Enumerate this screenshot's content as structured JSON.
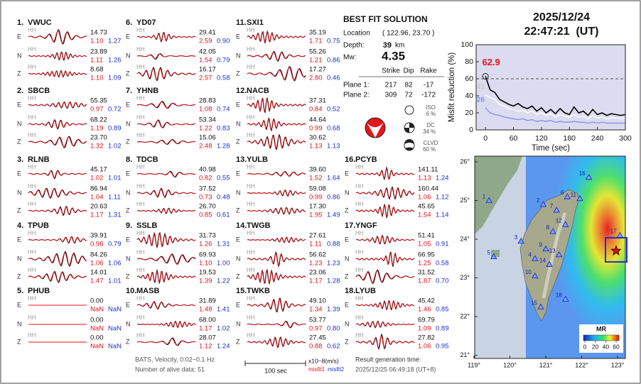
{
  "header": {
    "date": "2025/12/24",
    "time": "22:47:21  (UT)"
  },
  "stations": [
    {
      "no": "1.",
      "name": "VWUC",
      "traces": [
        {
          "comp": "E",
          "channel": "HH",
          "amp": "14.73",
          "misfit1": "1.10",
          "misfit2": "1.27"
        },
        {
          "comp": "N",
          "channel": "HH",
          "amp": "23.89",
          "misfit1": "1.11",
          "misfit2": "1.26"
        },
        {
          "comp": "Z",
          "channel": "HH",
          "amp": "8.68",
          "misfit1": "1.10",
          "misfit2": "1.09"
        }
      ]
    },
    {
      "no": "2.",
      "name": "SBCB",
      "traces": [
        {
          "comp": "E",
          "channel": "HH",
          "amp": "55.35",
          "misfit1": "0.97",
          "misfit2": "0.72"
        },
        {
          "comp": "N",
          "channel": "HH",
          "amp": "68.22",
          "misfit1": "1.19",
          "misfit2": "0.89"
        },
        {
          "comp": "Z",
          "channel": "HH",
          "amp": "23.70",
          "misfit1": "1.32",
          "misfit2": "1.02"
        }
      ]
    },
    {
      "no": "3.",
      "name": "RLNB",
      "traces": [
        {
          "comp": "E",
          "channel": "HH",
          "amp": "45.17",
          "misfit1": "1.02",
          "misfit2": "1.01"
        },
        {
          "comp": "N",
          "channel": "HH",
          "amp": "86.94",
          "misfit1": "1.04",
          "misfit2": "1.11"
        },
        {
          "comp": "Z",
          "channel": "HH",
          "amp": "20.63",
          "misfit1": "1.17",
          "misfit2": "1.31"
        }
      ]
    },
    {
      "no": "4.",
      "name": "TPUB",
      "traces": [
        {
          "comp": "E",
          "channel": "HH",
          "amp": "39.91",
          "misfit1": "0.96",
          "misfit2": "0.79"
        },
        {
          "comp": "N",
          "channel": "HH",
          "amp": "84.26",
          "misfit1": "1.06",
          "misfit2": "1.06"
        },
        {
          "comp": "Z",
          "channel": "HH",
          "amp": "14.01",
          "misfit1": "1.47",
          "misfit2": "1.01"
        }
      ]
    },
    {
      "no": "5.",
      "name": "PHUB",
      "traces": [
        {
          "comp": "E",
          "channel": "HH",
          "amp": "0.00",
          "misfit1": "NaN",
          "misfit2": "NaN"
        },
        {
          "comp": "N",
          "channel": "HH",
          "amp": "0.00",
          "misfit1": "NaN",
          "misfit2": "NaN"
        },
        {
          "comp": "Z",
          "channel": "HH",
          "amp": "0.00",
          "misfit1": "NaN",
          "misfit2": "NaN"
        }
      ]
    },
    {
      "no": "6.",
      "name": "YD07",
      "traces": [
        {
          "comp": "E",
          "channel": "HH",
          "amp": "29.41",
          "misfit1": "2.59",
          "misfit2": "0.90"
        },
        {
          "comp": "N",
          "channel": "HH",
          "amp": "42.05",
          "misfit1": "1.54",
          "misfit2": "0.79"
        },
        {
          "comp": "Z",
          "channel": "HH",
          "amp": "16.17",
          "misfit1": "2.57",
          "misfit2": "0.58"
        }
      ]
    },
    {
      "no": "7.",
      "name": "YHNB",
      "traces": [
        {
          "comp": "E",
          "channel": "HH",
          "amp": "28.83",
          "misfit1": "1.08",
          "misfit2": "0.74"
        },
        {
          "comp": "N",
          "channel": "HH",
          "amp": "53.34",
          "misfit1": "1.22",
          "misfit2": "0.83"
        },
        {
          "comp": "Z",
          "channel": "HH",
          "amp": "15.06",
          "misfit1": "2.48",
          "misfit2": "1.28"
        }
      ]
    },
    {
      "no": "8.",
      "name": "TDCB",
      "traces": [
        {
          "comp": "E",
          "channel": "HH",
          "amp": "40.98",
          "misfit1": "0.82",
          "misfit2": "0.55"
        },
        {
          "comp": "N",
          "channel": "HH",
          "amp": "37.52",
          "misfit1": "0.73",
          "misfit2": "0.48"
        },
        {
          "comp": "Z",
          "channel": "HH",
          "amp": "26.70",
          "misfit1": "0.85",
          "misfit2": "0.61"
        }
      ]
    },
    {
      "no": "9.",
      "name": "SSLB",
      "traces": [
        {
          "comp": "E",
          "channel": "HH",
          "amp": "31.73",
          "misfit1": "1.26",
          "misfit2": "1.31"
        },
        {
          "comp": "N",
          "channel": "HH",
          "amp": "69.93",
          "misfit1": "1.10",
          "misfit2": "1.00"
        },
        {
          "comp": "Z",
          "channel": "HH",
          "amp": "19.53",
          "misfit1": "1.39",
          "misfit2": "1.22"
        }
      ]
    },
    {
      "no": "10.",
      "name": "MASB",
      "traces": [
        {
          "comp": "E",
          "channel": "HH",
          "amp": "31.89",
          "misfit1": "1.48",
          "misfit2": "1.41"
        },
        {
          "comp": "N",
          "channel": "HH",
          "amp": "68.00",
          "misfit1": "1.17",
          "misfit2": "1.02"
        },
        {
          "comp": "Z",
          "channel": "HH",
          "amp": "28.07",
          "misfit1": "1.12",
          "misfit2": "1.24"
        }
      ]
    },
    {
      "no": "11.",
      "name": "SXI1",
      "traces": [
        {
          "comp": "E",
          "channel": "HH",
          "amp": "35.19",
          "misfit1": "1.71",
          "misfit2": "0.75"
        },
        {
          "comp": "N",
          "channel": "HH",
          "amp": "55.26",
          "misfit1": "1.21",
          "misfit2": "0.86"
        },
        {
          "comp": "Z",
          "channel": "HH",
          "amp": "17.27",
          "misfit1": "2.80",
          "misfit2": "0.46"
        }
      ]
    },
    {
      "no": "12.",
      "name": "NACB",
      "traces": [
        {
          "comp": "E",
          "channel": "HH",
          "amp": "37.31",
          "misfit1": "0.84",
          "misfit2": "0.52"
        },
        {
          "comp": "N",
          "channel": "HH",
          "amp": "44.64",
          "misfit1": "0.99",
          "misfit2": "0.68"
        },
        {
          "comp": "Z",
          "channel": "HH",
          "amp": "30.62",
          "misfit1": "1.13",
          "misfit2": "1.13"
        }
      ]
    },
    {
      "no": "13.",
      "name": "YULB",
      "traces": [
        {
          "comp": "E",
          "channel": "HH",
          "amp": "39.60",
          "misfit1": "1.52",
          "misfit2": "1.64"
        },
        {
          "comp": "N",
          "channel": "HH",
          "amp": "59.08",
          "misfit1": "0.99",
          "misfit2": "0.86"
        },
        {
          "comp": "Z",
          "channel": "HH",
          "amp": "17.30",
          "misfit1": "1.95",
          "misfit2": "1.49"
        }
      ]
    },
    {
      "no": "14.",
      "name": "TWGB",
      "traces": [
        {
          "comp": "E",
          "channel": "HH",
          "amp": "27.61",
          "misfit1": "1.11",
          "misfit2": "0.88"
        },
        {
          "comp": "N",
          "channel": "HH",
          "amp": "56.62",
          "misfit1": "1.23",
          "misfit2": "1.23"
        },
        {
          "comp": "Z",
          "channel": "HH",
          "amp": "23.06",
          "misfit1": "1.17",
          "misfit2": "1.28"
        }
      ]
    },
    {
      "no": "15.",
      "name": "TWKB",
      "traces": [
        {
          "comp": "E",
          "channel": "HH",
          "amp": "49.10",
          "misfit1": "1.34",
          "misfit2": "1.39"
        },
        {
          "comp": "N",
          "channel": "HH",
          "amp": "53.77",
          "misfit1": "0.97",
          "misfit2": "0.80"
        },
        {
          "comp": "Z",
          "channel": "HH",
          "amp": "27.45",
          "misfit1": "0.88",
          "misfit2": "0.62"
        }
      ]
    },
    {
      "no": "16.",
      "name": "PCYB",
      "traces": [
        {
          "comp": "E",
          "channel": "HH",
          "amp": "141.11",
          "misfit1": "1.13",
          "misfit2": "1.24"
        },
        {
          "comp": "N",
          "channel": "HH",
          "amp": "160.44",
          "misfit1": "1.06",
          "misfit2": "1.12"
        },
        {
          "comp": "Z",
          "channel": "HH",
          "amp": "45.65",
          "misfit1": "1.54",
          "misfit2": "1.14"
        }
      ]
    },
    {
      "no": "17.",
      "name": "YNGF",
      "traces": [
        {
          "comp": "E",
          "channel": "HH",
          "amp": "51.41",
          "misfit1": "1.05",
          "misfit2": "0.91"
        },
        {
          "comp": "N",
          "channel": "HH",
          "amp": "66.95",
          "misfit1": "1.25",
          "misfit2": "0.58"
        },
        {
          "comp": "Z",
          "channel": "HH",
          "amp": "31.52",
          "misfit1": "1.87",
          "misfit2": "0.70"
        }
      ]
    },
    {
      "no": "18.",
      "name": "LYUB",
      "traces": [
        {
          "comp": "E",
          "channel": "HH",
          "amp": "45.42",
          "misfit1": "1.46",
          "misfit2": "0.85"
        },
        {
          "comp": "N",
          "channel": "HH",
          "amp": "69.79",
          "misfit1": "1.09",
          "misfit2": "0.89"
        },
        {
          "comp": "Z",
          "channel": "HH",
          "amp": "27.82",
          "misfit1": "1.06",
          "misfit2": "0.95"
        }
      ]
    }
  ],
  "solution": {
    "title": "BEST FIT SOLUTION",
    "location_label": "Location",
    "location": "( 122.96, 23.70 )",
    "depth_label": "Depth:",
    "depth": "39",
    "depth_unit": "km",
    "mw_label": "Mw:",
    "mw": "4.35",
    "headers": [
      "Strike",
      "Dip",
      "Rake"
    ],
    "planes": [
      {
        "label": "Plane 1:",
        "values": [
          217,
          82,
          -17
        ]
      },
      {
        "label": "Plane 2:",
        "values": [
          309,
          72,
          -172
        ]
      }
    ],
    "components": [
      {
        "name": "ISO",
        "value": 6
      },
      {
        "name": "DC",
        "value": 34
      },
      {
        "name": "CLVD",
        "value": 60
      }
    ],
    "component_unit": "%"
  },
  "chart_data": {
    "type": "line",
    "ylabel": "Misfit reduction (%)",
    "xlabel": "Time (sec)",
    "x": [
      0,
      10,
      20,
      30,
      40,
      50,
      60,
      70,
      80,
      90,
      100,
      110,
      120,
      130,
      140,
      150,
      160,
      170,
      180,
      190,
      200,
      210,
      220,
      230,
      240,
      250,
      260,
      270,
      280,
      290,
      300
    ],
    "series": [
      {
        "color": "#000000",
        "values": [
          62.9,
          47,
          44,
          36,
          33,
          30,
          28,
          31,
          27,
          25,
          28,
          22,
          26,
          20,
          24,
          19,
          25,
          20,
          18,
          27,
          20,
          22,
          17,
          24,
          18,
          20,
          17,
          19,
          18,
          17,
          18
        ]
      },
      {
        "color": "#ffffff",
        "values": [
          41,
          38,
          36,
          30,
          28,
          25,
          24,
          22,
          23,
          20,
          22,
          18,
          20,
          17,
          19,
          15,
          18,
          16,
          15,
          18,
          15,
          16,
          13,
          17,
          14,
          15,
          13,
          14,
          14,
          13,
          14
        ]
      },
      {
        "color": "#8a8ff0",
        "values": [
          26,
          20,
          18,
          17,
          15,
          14,
          13,
          12,
          13,
          11,
          12,
          10,
          11,
          10,
          11,
          9,
          10,
          9,
          9,
          10,
          9,
          9,
          8,
          9,
          8,
          9,
          8,
          8,
          8,
          8,
          8
        ]
      }
    ],
    "annotations": [
      "62.9",
      "41",
      "26"
    ],
    "annotation_colors": [
      "#e8141b",
      "#c8c8c8",
      "#8a8ff0"
    ],
    "reference_line": 60,
    "background": "#dcdcf0",
    "xlim": [
      -20,
      300
    ],
    "ylim": [
      0,
      100
    ],
    "xticks": [
      0,
      60,
      120,
      180,
      240,
      300
    ],
    "yticks": [
      0,
      20,
      40,
      60,
      80,
      100
    ]
  },
  "map": {
    "lat_ticks": [
      {
        "value": 26,
        "label": "26°"
      },
      {
        "value": 25,
        "label": "25°"
      },
      {
        "value": 24,
        "label": "24°"
      },
      {
        "value": 23,
        "label": "23°"
      },
      {
        "value": 22,
        "label": "22°"
      },
      {
        "value": 21,
        "label": "21°"
      }
    ],
    "lon_ticks": [
      {
        "value": 119,
        "label": "119°"
      },
      {
        "value": 120,
        "label": "120°"
      },
      {
        "value": 121,
        "label": "121°"
      },
      {
        "value": 122,
        "label": "122°"
      },
      {
        "value": 123,
        "label": "123°"
      }
    ],
    "stations": [
      {
        "label": "1",
        "lon": 119.42,
        "lat": 25.0
      },
      {
        "label": "2",
        "lon": 120.93,
        "lat": 24.9
      },
      {
        "label": "3",
        "lon": 120.31,
        "lat": 23.95
      },
      {
        "label": "4",
        "lon": 120.7,
        "lat": 23.5
      },
      {
        "label": "5",
        "lon": 119.55,
        "lat": 23.55
      },
      {
        "label": "6",
        "lon": 121.6,
        "lat": 25.1
      },
      {
        "label": "7",
        "lon": 121.3,
        "lat": 24.75
      },
      {
        "label": "8",
        "lon": 121.2,
        "lat": 24.2
      },
      {
        "label": "9",
        "lon": 121.0,
        "lat": 23.75
      },
      {
        "label": "10",
        "lon": 120.7,
        "lat": 23.05
      },
      {
        "label": "11",
        "lon": 121.95,
        "lat": 25.05
      },
      {
        "label": "12",
        "lon": 121.55,
        "lat": 24.38
      },
      {
        "label": "13",
        "lon": 121.37,
        "lat": 23.6
      },
      {
        "label": "14",
        "lon": 121.1,
        "lat": 23.35
      },
      {
        "label": "15",
        "lon": 120.86,
        "lat": 22.25
      },
      {
        "label": "16",
        "lon": 122.2,
        "lat": 25.6
      },
      {
        "label": "17",
        "lon": 123.07,
        "lat": 24.1
      },
      {
        "label": "18",
        "lon": 121.55,
        "lat": 22.45
      }
    ],
    "epicenter": {
      "lon": 122.96,
      "lat": 23.7
    },
    "colorbar": {
      "title": "MR",
      "ticks": [
        0,
        20,
        40,
        60
      ]
    }
  },
  "footer": {
    "filter": "BATS, Velocity, 0.02~0.1 Hz",
    "alive": "Number of alive data: 51",
    "scale": "100 sec",
    "units": "x10−8(m/s)",
    "misfit1": "misfit1",
    "misfit2": "misfit2",
    "result_label": "Result generation time:",
    "result_time": "2025/12/25 06:49:18 (UT+8)"
  }
}
